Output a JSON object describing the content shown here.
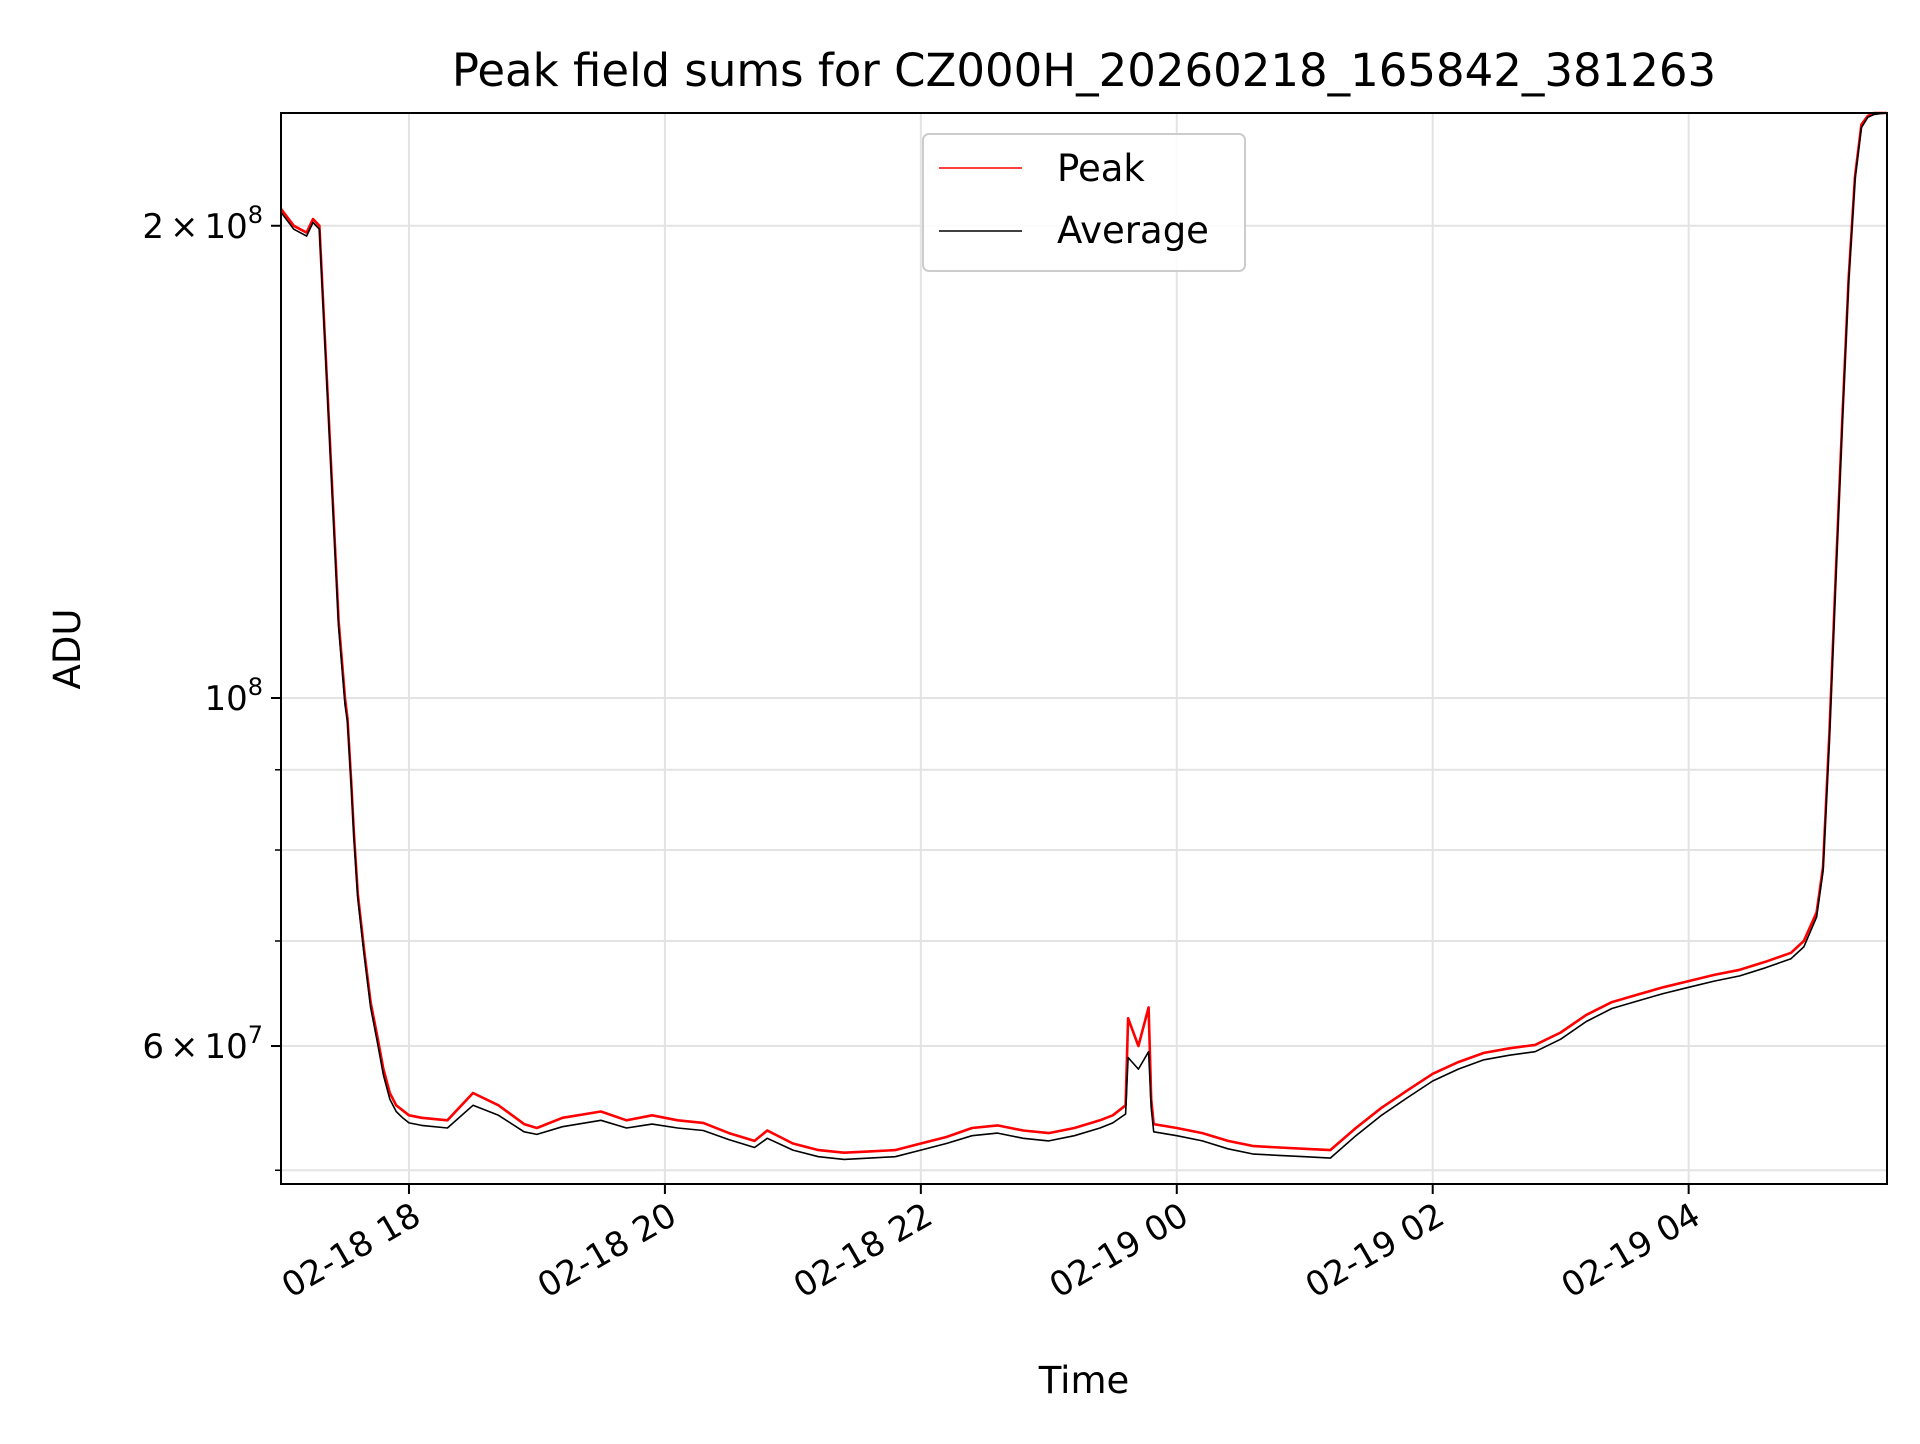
{
  "chart_data": {
    "type": "line",
    "title": "Peak field sums for CZ000H_20260218_165842_381263",
    "xlabel": "Time",
    "ylabel": "ADU",
    "yscale": "log",
    "xlim_hours": [
      0,
      12.55
    ],
    "ylim": [
      49000000,
      236000000
    ],
    "x_reference": "02-18 17:00",
    "x_ticks": [
      {
        "hour": 1,
        "label": "02-18 18"
      },
      {
        "hour": 3,
        "label": "02-18 20"
      },
      {
        "hour": 5,
        "label": "02-18 22"
      },
      {
        "hour": 7,
        "label": "02-19 00"
      },
      {
        "hour": 9,
        "label": "02-19 02"
      },
      {
        "hour": 11,
        "label": "02-19 04"
      }
    ],
    "y_ticks": [
      {
        "value": 60000000,
        "mantissa": "6",
        "exponent": "7"
      },
      {
        "value": 100000000,
        "mantissa": "",
        "exponent": "8"
      },
      {
        "value": 200000000,
        "mantissa": "2",
        "exponent": "8"
      }
    ],
    "y_times_sign": "×",
    "y_base": "10",
    "y_minor_values": [
      50000000,
      70000000,
      80000000,
      90000000
    ],
    "grid": true,
    "legend": {
      "position": "upper-center"
    },
    "series": [
      {
        "name": "Peak",
        "color": "#ff0000",
        "x": [
          0,
          0.1,
          0.2,
          0.25,
          0.3,
          0.35,
          0.45,
          0.5,
          0.52,
          0.55,
          0.57,
          0.6,
          0.65,
          0.7,
          0.75,
          0.8,
          0.85,
          0.9,
          0.95,
          1.0,
          1.1,
          1.3,
          1.5,
          1.7,
          1.9,
          2.0,
          2.2,
          2.5,
          2.7,
          2.9,
          3.1,
          3.3,
          3.5,
          3.7,
          3.8,
          4.0,
          4.2,
          4.4,
          4.6,
          4.8,
          5.0,
          5.2,
          5.4,
          5.6,
          5.8,
          6.0,
          6.2,
          6.4,
          6.5,
          6.6,
          6.62,
          6.7,
          6.78,
          6.8,
          6.82,
          7.0,
          7.2,
          7.4,
          7.6,
          7.8,
          8.0,
          8.2,
          8.4,
          8.6,
          8.8,
          9.0,
          9.2,
          9.4,
          9.6,
          9.8,
          10.0,
          10.2,
          10.4,
          10.6,
          10.8,
          11.0,
          11.2,
          11.4,
          11.6,
          11.8,
          11.9,
          12.0,
          12.05,
          12.1,
          12.15,
          12.2,
          12.25,
          12.3,
          12.35,
          12.4,
          12.45,
          12.5,
          12.55
        ],
        "y": [
          205000000,
          200000000,
          198000000,
          202000000,
          200000000,
          165000000,
          112000000,
          100000000,
          97000000,
          88000000,
          82000000,
          75000000,
          69000000,
          64000000,
          61000000,
          58000000,
          56000000,
          55000000,
          54600000,
          54200000,
          54000000,
          53800000,
          56000000,
          55000000,
          53500000,
          53200000,
          54000000,
          54500000,
          53800000,
          54200000,
          53800000,
          53600000,
          52800000,
          52200000,
          53000000,
          52000000,
          51500000,
          51300000,
          51400000,
          51500000,
          52000000,
          52500000,
          53200000,
          53400000,
          53000000,
          52800000,
          53200000,
          53800000,
          54200000,
          55000000,
          62500000,
          60000000,
          63500000,
          55500000,
          53500000,
          53200000,
          52800000,
          52200000,
          51800000,
          51700000,
          51600000,
          51500000,
          53200000,
          54800000,
          56200000,
          57600000,
          58600000,
          59400000,
          59800000,
          60100000,
          61200000,
          62800000,
          64000000,
          64700000,
          65400000,
          66000000,
          66600000,
          67100000,
          67900000,
          68800000,
          70000000,
          73000000,
          78000000,
          95000000,
          120000000,
          150000000,
          185000000,
          215000000,
          232000000,
          235000000,
          236000000,
          236000000,
          236000000
        ]
      },
      {
        "name": "Average",
        "color": "#000000",
        "x": [
          0,
          0.1,
          0.2,
          0.25,
          0.3,
          0.35,
          0.45,
          0.5,
          0.52,
          0.55,
          0.57,
          0.6,
          0.65,
          0.7,
          0.75,
          0.8,
          0.85,
          0.9,
          0.95,
          1.0,
          1.1,
          1.3,
          1.5,
          1.7,
          1.9,
          2.0,
          2.2,
          2.5,
          2.7,
          2.9,
          3.1,
          3.3,
          3.5,
          3.7,
          3.8,
          4.0,
          4.2,
          4.4,
          4.6,
          4.8,
          5.0,
          5.2,
          5.4,
          5.6,
          5.8,
          6.0,
          6.2,
          6.4,
          6.5,
          6.6,
          6.62,
          6.7,
          6.78,
          6.8,
          6.82,
          7.0,
          7.2,
          7.4,
          7.6,
          7.8,
          8.0,
          8.2,
          8.4,
          8.6,
          8.8,
          9.0,
          9.2,
          9.4,
          9.6,
          9.8,
          10.0,
          10.2,
          10.4,
          10.6,
          10.8,
          11.0,
          11.2,
          11.4,
          11.6,
          11.8,
          11.9,
          12.0,
          12.05,
          12.1,
          12.15,
          12.2,
          12.25,
          12.3,
          12.35,
          12.4,
          12.45,
          12.5,
          12.55
        ],
        "y": [
          204000000,
          199000000,
          197000000,
          201000000,
          199000000,
          164000000,
          111000000,
          99000000,
          96500000,
          87500000,
          81500000,
          74500000,
          68500000,
          63500000,
          60500000,
          57500000,
          55500000,
          54500000,
          54000000,
          53600000,
          53400000,
          53200000,
          55000000,
          54200000,
          52900000,
          52700000,
          53300000,
          53800000,
          53200000,
          53500000,
          53200000,
          53000000,
          52300000,
          51700000,
          52400000,
          51500000,
          51000000,
          50800000,
          50900000,
          51000000,
          51500000,
          52000000,
          52600000,
          52800000,
          52400000,
          52200000,
          52600000,
          53200000,
          53600000,
          54300000,
          59000000,
          58000000,
          59500000,
          54800000,
          52900000,
          52600000,
          52200000,
          51600000,
          51200000,
          51100000,
          51000000,
          50900000,
          52600000,
          54200000,
          55600000,
          57000000,
          58000000,
          58800000,
          59200000,
          59500000,
          60600000,
          62200000,
          63400000,
          64100000,
          64800000,
          65400000,
          66000000,
          66500000,
          67300000,
          68200000,
          69400000,
          72500000,
          77500000,
          94000000,
          119000000,
          149000000,
          184000000,
          214000000,
          231000000,
          234500000,
          235500000,
          235800000,
          236000000
        ]
      }
    ]
  }
}
